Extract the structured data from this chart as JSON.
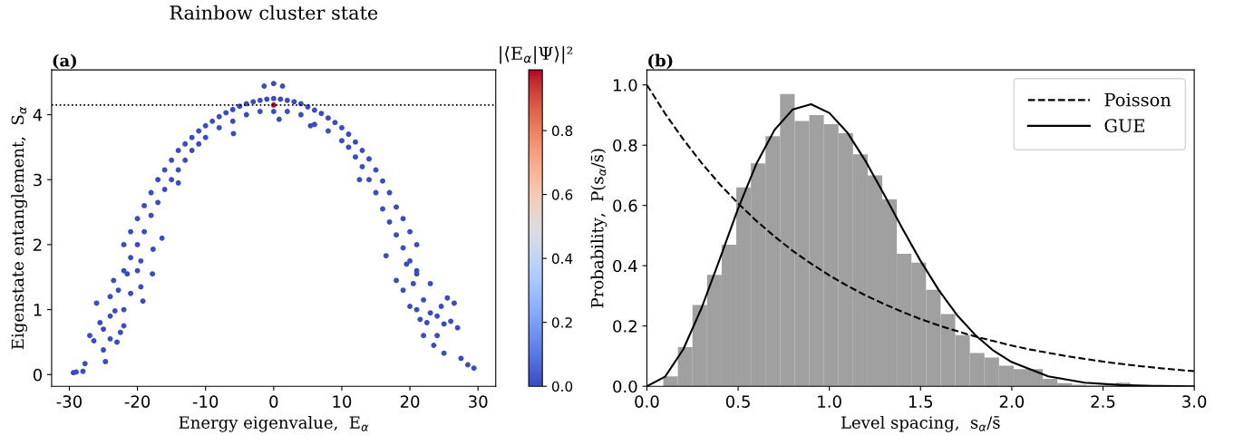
{
  "chart_data": [
    {
      "type": "scatter",
      "title": "Rainbow cluster state",
      "annotations": [
        "(a)"
      ],
      "xlabel": "Energy eigenvalue,  E$_{α}$",
      "ylabel": "Eigenstate entanglement,  S$_{α}$",
      "clabel": "|⟨E$_{α}$|Ψ⟩|²",
      "x": [
        -22,
        -21,
        -20,
        -19,
        -18,
        -17,
        -16,
        -15,
        -14,
        -13,
        -12,
        -11,
        -10,
        -9,
        -8,
        -7,
        -6,
        -5,
        -4,
        -3,
        -2,
        -1,
        0,
        1,
        2,
        3,
        4,
        5,
        6,
        7,
        8,
        9,
        10,
        11,
        12,
        13,
        14,
        15,
        16,
        17,
        18,
        19,
        20,
        21,
        -22,
        -21,
        -20,
        -19,
        -18,
        -17,
        -16,
        -15,
        -14,
        -13,
        -12,
        -11,
        -10,
        -8,
        -6,
        -4,
        -2,
        0,
        2,
        4,
        6,
        8,
        10,
        11,
        12,
        13,
        14,
        15,
        16,
        17,
        18,
        19,
        20,
        21,
        -29.4,
        -29.0,
        -28.0,
        -27.7,
        -27,
        -26.4,
        -26,
        -25.5,
        -25,
        -25,
        -24.7,
        -24,
        -24,
        -24,
        -23.5,
        -23.3,
        -23,
        -22.8,
        -22.5,
        -22,
        -22,
        -21.5,
        -21,
        -20,
        -19.5,
        -19.5,
        -19.2,
        -17.8,
        -17.7,
        -16.4,
        -14,
        -5.9,
        -1.4,
        0,
        1.3,
        0.8,
        5.4,
        12.6,
        16.5,
        18,
        19,
        19.5,
        20,
        20.5,
        21,
        21,
        21.5,
        22,
        22,
        22.5,
        23,
        23,
        23.5,
        24,
        24,
        24.6,
        25,
        25,
        25.5,
        26,
        26.5,
        27,
        27.5,
        28.5,
        29.4,
        0
      ],
      "values": [
        2.0,
        2.2,
        2.4,
        2.6,
        2.8,
        3.0,
        3.15,
        3.3,
        3.45,
        3.55,
        3.65,
        3.75,
        3.83,
        3.9,
        3.97,
        4.03,
        4.08,
        4.13,
        4.17,
        4.2,
        4.22,
        4.24,
        4.25,
        4.24,
        4.22,
        4.2,
        4.17,
        4.12,
        4.07,
        4.02,
        3.95,
        3.88,
        3.8,
        3.7,
        3.58,
        3.45,
        3.32,
        3.15,
        2.98,
        2.8,
        2.58,
        2.4,
        2.2,
        2.0,
        1.6,
        1.8,
        2.0,
        2.2,
        2.45,
        2.65,
        2.85,
        3.0,
        3.15,
        3.3,
        3.45,
        3.55,
        3.65,
        3.8,
        3.9,
        4.0,
        4.05,
        4.05,
        4.05,
        4.0,
        3.85,
        3.75,
        3.6,
        3.5,
        3.35,
        3.2,
        3.0,
        2.8,
        2.55,
        2.35,
        2.15,
        1.95,
        1.75,
        1.55,
        0.03,
        0.04,
        0.05,
        0.17,
        0.6,
        0.52,
        1.1,
        0.8,
        0.38,
        0.7,
        0.2,
        0.55,
        0.9,
        1.2,
        1.45,
        0.98,
        0.5,
        1.3,
        0.65,
        0.75,
        1.0,
        1.55,
        1.25,
        1.6,
        1.35,
        1.75,
        1.13,
        1.55,
        1.93,
        2.1,
        2.95,
        3.71,
        4.44,
        4.48,
        4.44,
        3.93,
        3.83,
        3.0,
        1.83,
        1.45,
        1.3,
        1.7,
        1.05,
        1.4,
        1.6,
        1.0,
        0.85,
        0.6,
        1.15,
        0.8,
        1.4,
        0.95,
        0.45,
        0.6,
        0.9,
        1.05,
        0.33,
        0.78,
        1.18,
        0.82,
        1.1,
        0.72,
        0.25,
        0.15,
        0.1,
        4.15
      ],
      "cvalues": [
        0,
        0,
        0,
        0,
        0,
        0,
        0,
        0,
        0,
        0,
        0,
        0,
        0,
        0,
        0,
        0,
        0,
        0,
        0,
        0,
        0,
        0,
        0,
        0,
        0,
        0,
        0,
        0,
        0,
        0,
        0,
        0,
        0,
        0,
        0,
        0,
        0,
        0,
        0,
        0,
        0,
        0,
        0,
        0,
        0,
        0,
        0,
        0,
        0,
        0,
        0,
        0,
        0,
        0,
        0,
        0,
        0,
        0,
        0,
        0,
        0,
        0,
        0,
        0,
        0,
        0,
        0,
        0,
        0,
        0,
        0,
        0,
        0,
        0,
        0,
        0,
        0,
        0,
        0,
        0,
        0,
        0,
        0,
        0,
        0,
        0,
        0,
        0,
        0,
        0,
        0,
        0,
        0,
        0,
        0,
        0,
        0,
        0,
        0,
        0,
        0,
        0,
        0,
        0,
        0,
        0,
        0,
        0,
        0,
        0,
        0,
        0,
        0,
        0,
        0,
        0,
        0,
        0,
        0,
        0,
        0,
        0,
        0,
        0,
        0,
        0,
        0,
        0,
        0,
        0,
        0,
        0,
        0,
        0,
        0,
        0,
        0,
        0,
        0,
        0,
        0,
        0,
        0,
        0.98
      ],
      "clim": [
        0,
        0.99
      ],
      "cticks": [
        {
          "value": 0,
          "label": "0.0"
        },
        0.2,
        0.4,
        0.6,
        0.8
      ],
      "ref_lines": [
        {
          "axis": "y",
          "value": 4.15,
          "color": "#000000",
          "line_style": "dotted"
        }
      ],
      "xlim": [
        -32.6,
        32.6
      ],
      "ylim": [
        -0.18,
        4.69
      ],
      "xticks": [
        -30,
        -20,
        -10,
        0,
        10,
        20,
        30
      ],
      "yticks": [
        0,
        1,
        2,
        3,
        4
      ],
      "grid": false,
      "marker": "circle"
    },
    {
      "type": "histogram",
      "annotations": [
        "(b)"
      ],
      "xlabel": "Level spacing,  s$_{α}$/s̄",
      "ylabel": "Probability,  P(s$_{α}$/s̄)",
      "color": "#a0a0a0",
      "bins": [
        0.09,
        0.17,
        0.25,
        0.33,
        0.41,
        0.49,
        0.57,
        0.65,
        0.73,
        0.81,
        0.89,
        0.97,
        1.05,
        1.13,
        1.21,
        1.29,
        1.37,
        1.45,
        1.53,
        1.61,
        1.69,
        1.77,
        1.85,
        1.93,
        2.01,
        2.09,
        2.17,
        2.25,
        2.33,
        2.41,
        2.49,
        2.57,
        2.65
      ],
      "values": [
        0.033,
        0.13,
        0.27,
        0.37,
        0.47,
        0.66,
        0.74,
        0.83,
        0.97,
        0.88,
        0.9,
        0.87,
        0.84,
        0.77,
        0.7,
        0.62,
        0.44,
        0.41,
        0.32,
        0.24,
        0.17,
        0.11,
        0.095,
        0.068,
        0.057,
        0.057,
        0.025,
        0.01,
        0.005,
        0.003,
        0.003,
        0.012
      ],
      "series": [
        {
          "type": "line",
          "name": "Poisson",
          "color": "#000000",
          "line_style": "dashed",
          "x": [
            0,
            0.1,
            0.2,
            0.3,
            0.4,
            0.5,
            0.6,
            0.7,
            0.8,
            0.9,
            1.0,
            1.1,
            1.2,
            1.3,
            1.4,
            1.5,
            1.6,
            1.7,
            1.8,
            1.9,
            2.0,
            2.1,
            2.2,
            2.3,
            2.4,
            2.5,
            2.6,
            2.7,
            2.8,
            2.9,
            3.0
          ],
          "values": [
            1.0,
            0.905,
            0.819,
            0.741,
            0.67,
            0.607,
            0.549,
            0.497,
            0.449,
            0.407,
            0.368,
            0.333,
            0.301,
            0.273,
            0.247,
            0.223,
            0.202,
            0.183,
            0.165,
            0.15,
            0.135,
            0.122,
            0.111,
            0.1,
            0.091,
            0.082,
            0.074,
            0.067,
            0.061,
            0.055,
            0.05
          ]
        },
        {
          "type": "line",
          "name": "GUE",
          "color": "#000000",
          "line_style": "solid",
          "x": [
            0,
            0.1,
            0.2,
            0.3,
            0.4,
            0.5,
            0.6,
            0.7,
            0.8,
            0.9,
            1.0,
            1.1,
            1.2,
            1.3,
            1.4,
            1.5,
            1.6,
            1.7,
            1.8,
            1.9,
            2.0,
            2.2,
            2.4,
            2.6,
            2.8,
            3.0
          ],
          "values": [
            0,
            0.032,
            0.123,
            0.26,
            0.423,
            0.59,
            0.738,
            0.851,
            0.919,
            0.936,
            0.907,
            0.841,
            0.746,
            0.637,
            0.524,
            0.416,
            0.319,
            0.236,
            0.17,
            0.118,
            0.08,
            0.033,
            0.012,
            0.004,
            0.001,
            0
          ]
        }
      ],
      "xlim": [
        0,
        3.0
      ],
      "ylim": [
        0,
        1.05
      ],
      "xticks": [
        {
          "value": 0,
          "label": "0.0"
        },
        0.5,
        {
          "value": 1,
          "label": "1.0"
        },
        1.5,
        {
          "value": 2,
          "label": "2.0"
        },
        2.5,
        {
          "value": 3,
          "label": "3.0"
        }
      ],
      "yticks": [
        {
          "value": 0,
          "label": "0.0"
        },
        0.2,
        0.4,
        0.6,
        0.8,
        {
          "value": 1,
          "label": "1.0"
        }
      ],
      "legend": "top right",
      "grid": false
    }
  ]
}
